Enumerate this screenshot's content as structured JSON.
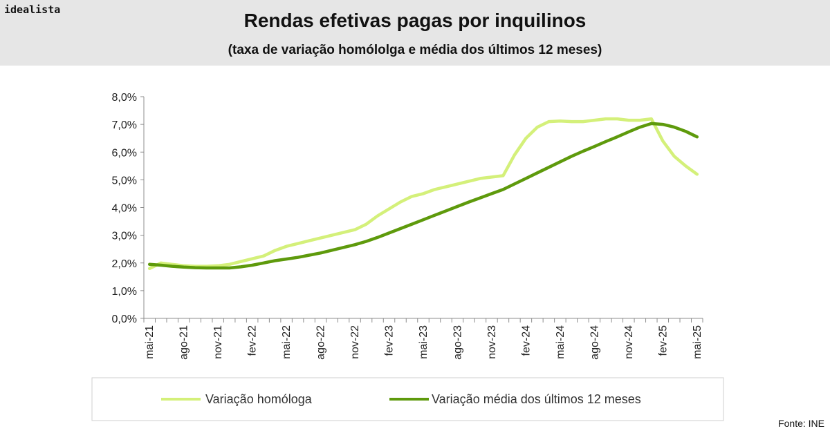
{
  "header": {
    "brand": "idealista",
    "title": "Rendas efetivas pagas por inquilinos",
    "subtitle": "(taxa de variação homólolga e média dos últimos 12 meses)"
  },
  "source": "Fonte: INE",
  "colors": {
    "series_1": "#d4f07a",
    "series_2": "#5e9a0c",
    "header_bg": "#e6e6e6",
    "axis": "#8c8c8c"
  },
  "chart_data": {
    "type": "line",
    "ylim": [
      0,
      8
    ],
    "yticks": [
      "0,0%",
      "1,0%",
      "2,0%",
      "3,0%",
      "4,0%",
      "5,0%",
      "6,0%",
      "7,0%",
      "8,0%"
    ],
    "xtick_labels": [
      "mai-21",
      "ago-21",
      "nov-21",
      "fev-22",
      "mai-22",
      "ago-22",
      "nov-22",
      "fev-23",
      "mai-23",
      "ago-23",
      "nov-23",
      "fev-24",
      "mai-24",
      "ago-24",
      "nov-24",
      "fev-25",
      "mai-25"
    ],
    "x": [
      "mai-21",
      "jun-21",
      "jul-21",
      "ago-21",
      "set-21",
      "out-21",
      "nov-21",
      "dez-21",
      "jan-22",
      "fev-22",
      "mar-22",
      "abr-22",
      "mai-22",
      "jun-22",
      "jul-22",
      "ago-22",
      "set-22",
      "out-22",
      "nov-22",
      "dez-22",
      "jan-23",
      "fev-23",
      "mar-23",
      "abr-23",
      "mai-23",
      "jun-23",
      "jul-23",
      "ago-23",
      "set-23",
      "out-23",
      "nov-23",
      "dez-23",
      "jan-24",
      "fev-24",
      "mar-24",
      "abr-24",
      "mai-24",
      "jun-24",
      "jul-24",
      "ago-24",
      "set-24",
      "out-24",
      "nov-24",
      "dez-24",
      "jan-25",
      "fev-25",
      "mar-25",
      "abr-25",
      "mai-25"
    ],
    "series": [
      {
        "name": "Variação homóloga",
        "values": [
          1.8,
          2.0,
          1.95,
          1.9,
          1.88,
          1.88,
          1.9,
          1.95,
          2.05,
          2.15,
          2.25,
          2.45,
          2.6,
          2.7,
          2.8,
          2.9,
          3.0,
          3.1,
          3.2,
          3.4,
          3.7,
          3.95,
          4.2,
          4.4,
          4.5,
          4.65,
          4.75,
          4.85,
          4.95,
          5.05,
          5.1,
          5.15,
          5.9,
          6.5,
          6.9,
          7.1,
          7.12,
          7.1,
          7.1,
          7.15,
          7.2,
          7.2,
          7.15,
          7.15,
          7.2,
          6.4,
          5.85,
          5.5,
          5.2
        ]
      },
      {
        "name": "Variação média dos últimos 12 meses",
        "values": [
          1.95,
          1.92,
          1.88,
          1.85,
          1.83,
          1.82,
          1.82,
          1.82,
          1.86,
          1.92,
          2.0,
          2.08,
          2.14,
          2.2,
          2.28,
          2.36,
          2.46,
          2.56,
          2.66,
          2.78,
          2.92,
          3.08,
          3.24,
          3.4,
          3.56,
          3.72,
          3.88,
          4.04,
          4.2,
          4.35,
          4.5,
          4.65,
          4.85,
          5.05,
          5.25,
          5.45,
          5.65,
          5.85,
          6.03,
          6.2,
          6.38,
          6.55,
          6.73,
          6.9,
          7.03,
          7.0,
          6.9,
          6.75,
          6.55
        ]
      }
    ],
    "legend": "bottom",
    "grid": false
  }
}
